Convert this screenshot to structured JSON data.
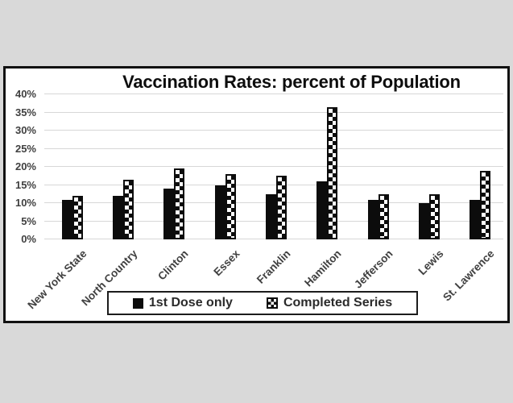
{
  "colors": {
    "background": "#d9d9d9",
    "chart_background": "#ffffff",
    "frame_border": "#111111",
    "gridline": "#d7d7d7",
    "axis_text": "#404040",
    "title_text": "#0d0d0d",
    "legend_text": "#2b2b2b",
    "bar_ink": "#0c0c0c"
  },
  "chart_data": {
    "type": "bar",
    "title": "Vaccination Rates: percent of Population",
    "categories": [
      "New York State",
      "North Country",
      "Clinton",
      "Essex",
      "Franklin",
      "Hamilton",
      "Jefferson",
      "Lewis",
      "St. Lawrence"
    ],
    "series": [
      {
        "name": "1st Dose only",
        "pattern": "solid",
        "values": [
          11,
          12,
          14,
          15,
          12.5,
          16,
          11,
          10,
          11
        ]
      },
      {
        "name": "Completed Series",
        "pattern": "checkerboard",
        "values": [
          12,
          16.5,
          19.5,
          18,
          17.5,
          36.5,
          12.5,
          12.5,
          19
        ]
      }
    ],
    "xlabel": "",
    "ylabel": "",
    "ylim": [
      0,
      40
    ],
    "ytick_step": 5,
    "yticks": [
      "0%",
      "5%",
      "10%",
      "15%",
      "20%",
      "25%",
      "30%",
      "35%",
      "40%"
    ],
    "grid": true,
    "x_label_rotation_deg": -45,
    "legend_position": "bottom-center"
  }
}
